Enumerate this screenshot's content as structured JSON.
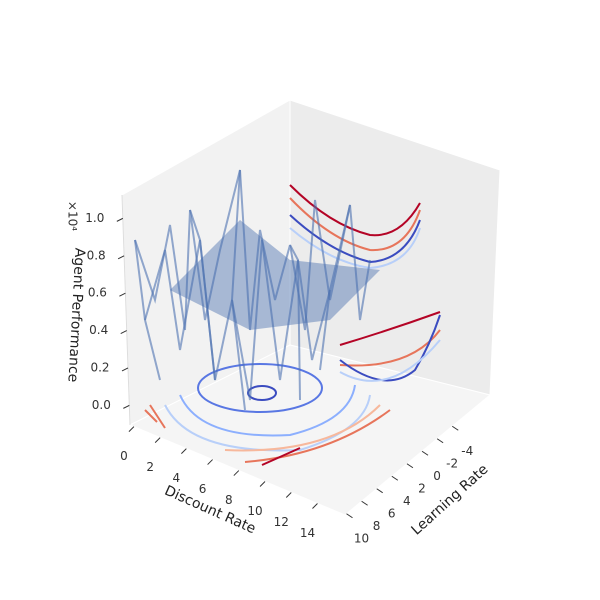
{
  "chart_data": {
    "type": "surface3d",
    "xlabel": "Discount Rate",
    "ylabel": "Learning Rate",
    "zlabel": "Agent Performance",
    "z_offset_label": "×10⁴",
    "xlim": [
      -0.3,
      16.1
    ],
    "xticks": [
      0,
      2,
      4,
      6,
      8,
      10,
      12,
      14
    ],
    "ylim": [
      -9,
      10.2
    ],
    "yticks": [
      -4,
      -2,
      0,
      2,
      4,
      6,
      8,
      10
    ],
    "zlim": [
      -0.105,
      1.125
    ],
    "zticks": [
      {
        "value": 0,
        "label": "0.0"
      },
      {
        "value": 0.2,
        "label": "0.2"
      },
      {
        "value": 0.4,
        "label": "0.4"
      },
      {
        "value": 0.6,
        "label": "0.6"
      },
      {
        "value": 0.8,
        "label": "0.8"
      },
      {
        "value": 1.0,
        "label": "1.0"
      }
    ]
  }
}
